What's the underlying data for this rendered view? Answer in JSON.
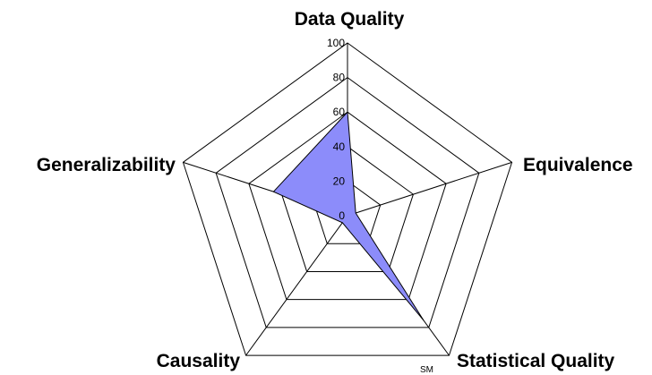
{
  "chart_data": {
    "type": "radar",
    "axes": [
      "Data Quality",
      "Equivalence",
      "Statistical Quality",
      "Causality",
      "Generalizability"
    ],
    "series": [
      {
        "values": [
          60,
          5,
          75,
          5,
          45
        ]
      }
    ],
    "rlim": [
      0,
      100
    ],
    "ticks": [
      "0",
      "20",
      "40",
      "60",
      "80",
      "100"
    ],
    "grid": true,
    "fill_color": "#8c8cfa"
  },
  "mark": "SM"
}
